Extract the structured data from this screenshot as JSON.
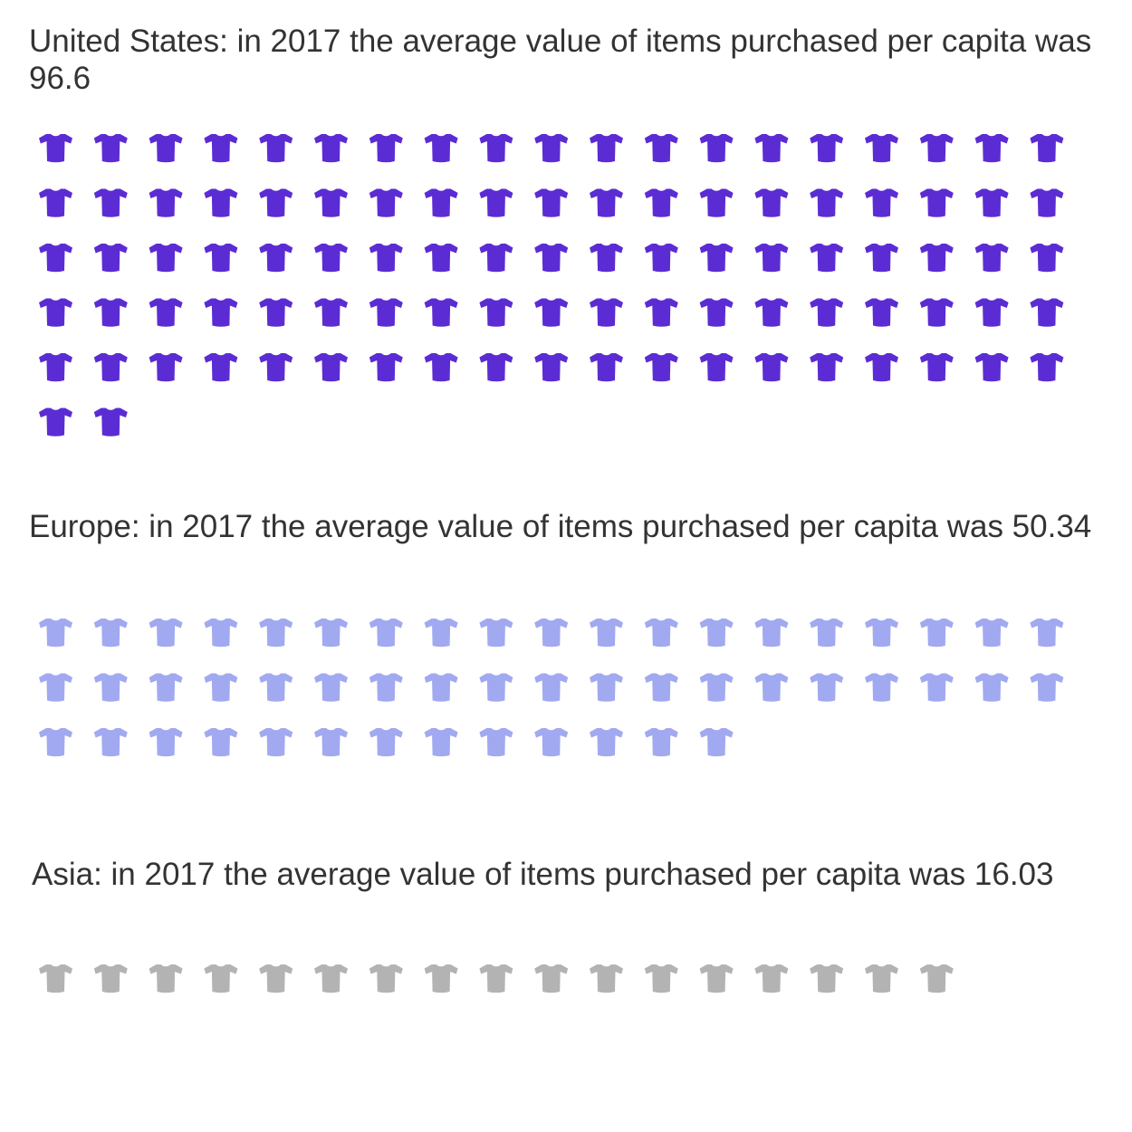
{
  "chart_data": [
    {
      "type": "pictogram",
      "title": "United States: in 2017 the average value of items purchased per capita was 96.6",
      "category": "United States",
      "year": 2017,
      "value": 96.6,
      "icon_count": 97,
      "icons_per_row": 19,
      "icon": "t-shirt-icon",
      "color": "#5b2cd3"
    },
    {
      "type": "pictogram",
      "title": "Europe: in 2017 the average value of items purchased per capita was 50.34",
      "category": "Europe",
      "year": 2017,
      "value": 50.34,
      "icon_count": 51,
      "icons_per_row": 19,
      "icon": "t-shirt-icon",
      "color": "#a1a9f0"
    },
    {
      "type": "pictogram",
      "title": "Asia: in 2017 the average value of items purchased per capita was 16.03",
      "category": "Asia",
      "year": 2017,
      "value": 16.03,
      "icon_count": 17,
      "icons_per_row": 19,
      "icon": "t-shirt-icon",
      "color": "#b3b3b3"
    }
  ]
}
